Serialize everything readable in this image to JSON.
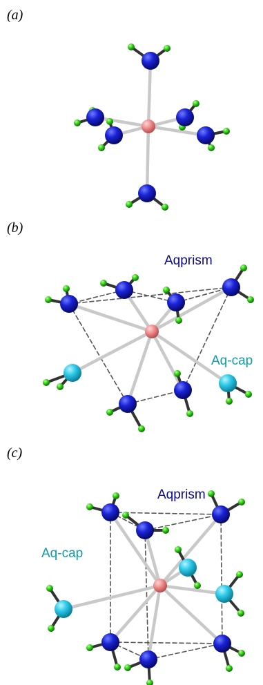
{
  "panels": [
    {
      "label": "(a)"
    },
    {
      "label": "(b)",
      "annotations": [
        "Aqprism",
        "Aq-cap"
      ]
    },
    {
      "label": "(c)",
      "annotations": [
        "Aqprism",
        "Aq-cap"
      ]
    }
  ]
}
